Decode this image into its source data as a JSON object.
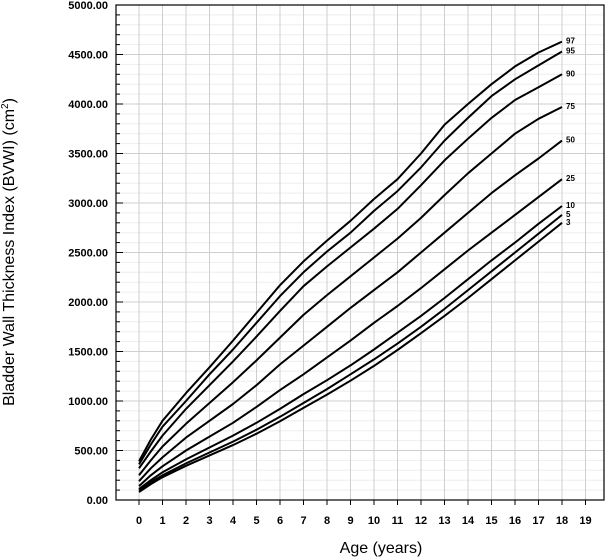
{
  "chart_data": {
    "type": "line",
    "xlabel": "Age (years)",
    "ylabel_main": "Bladder Wall Thickness Index (BVWI)  (cm",
    "ylabel_sup": "2",
    "ylabel_close": ")",
    "xlim": [
      0,
      19
    ],
    "ylim": [
      0,
      5000
    ],
    "x_ticks": [
      "0",
      "1",
      "2",
      "3",
      "4",
      "5",
      "6",
      "7",
      "8",
      "9",
      "10",
      "11",
      "12",
      "13",
      "14",
      "15",
      "16",
      "17",
      "18",
      "19"
    ],
    "y_ticks": [
      "0.00",
      "500.00",
      "1000.00",
      "1500.00",
      "2000.00",
      "2500.00",
      "3000.00",
      "3500.00",
      "4000.00",
      "4500.00",
      "5000.00"
    ],
    "grid": true,
    "x": [
      0,
      0.5,
      1,
      2,
      3,
      4,
      5,
      6,
      7,
      8,
      9,
      10,
      11,
      12,
      13,
      14,
      15,
      16,
      17,
      18
    ],
    "series": [
      {
        "name": "97",
        "values": [
          390,
          610,
          800,
          1080,
          1340,
          1610,
          1890,
          2170,
          2410,
          2620,
          2820,
          3040,
          3240,
          3500,
          3790,
          4000,
          4200,
          4380,
          4520,
          4630
        ]
      },
      {
        "name": "95",
        "values": [
          360,
          560,
          740,
          1000,
          1270,
          1520,
          1790,
          2060,
          2300,
          2510,
          2700,
          2920,
          3120,
          3360,
          3630,
          3860,
          4080,
          4250,
          4390,
          4530
        ]
      },
      {
        "name": "90",
        "values": [
          320,
          490,
          650,
          920,
          1160,
          1400,
          1650,
          1910,
          2160,
          2360,
          2550,
          2740,
          2940,
          3180,
          3430,
          3650,
          3860,
          4040,
          4170,
          4300
        ]
      },
      {
        "name": "75",
        "values": [
          250,
          400,
          540,
          770,
          980,
          1190,
          1410,
          1640,
          1870,
          2070,
          2260,
          2450,
          2640,
          2850,
          3080,
          3300,
          3500,
          3700,
          3850,
          3970
        ]
      },
      {
        "name": "50",
        "values": [
          190,
          320,
          430,
          630,
          800,
          970,
          1160,
          1370,
          1560,
          1750,
          1940,
          2120,
          2300,
          2500,
          2700,
          2900,
          3100,
          3280,
          3450,
          3630
        ]
      },
      {
        "name": "25",
        "values": [
          140,
          250,
          340,
          500,
          640,
          780,
          940,
          1110,
          1270,
          1440,
          1610,
          1790,
          1960,
          2140,
          2330,
          2520,
          2700,
          2880,
          3060,
          3240
        ]
      },
      {
        "name": "10",
        "values": [
          110,
          200,
          280,
          410,
          530,
          650,
          780,
          920,
          1070,
          1210,
          1360,
          1520,
          1690,
          1860,
          2040,
          2230,
          2420,
          2600,
          2790,
          2970
        ]
      },
      {
        "name": "5",
        "values": [
          95,
          180,
          250,
          370,
          480,
          590,
          710,
          840,
          980,
          1120,
          1270,
          1420,
          1580,
          1750,
          1930,
          2120,
          2310,
          2500,
          2690,
          2880
        ]
      },
      {
        "name": "3",
        "values": [
          80,
          160,
          230,
          345,
          450,
          555,
          670,
          795,
          930,
          1065,
          1205,
          1355,
          1515,
          1685,
          1860,
          2040,
          2230,
          2420,
          2610,
          2800
        ]
      }
    ],
    "colors": {
      "line": "#000000",
      "grid_major": "#cfcfcf",
      "grid_minor": "#eeeeee"
    }
  }
}
